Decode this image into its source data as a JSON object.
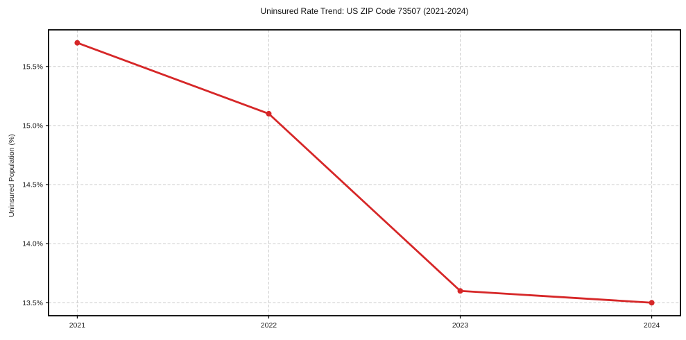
{
  "chart_data": {
    "type": "line",
    "title": "Uninsured Rate Trend: US ZIP Code 73507 (2021-2024)",
    "ylabel": "Uninsured Population (%)",
    "xlabel": "",
    "x": [
      2021,
      2022,
      2023,
      2024
    ],
    "values": [
      15.7,
      15.1,
      13.6,
      13.5
    ],
    "xlim": [
      2020.85,
      2024.15
    ],
    "ylim": [
      13.39,
      15.81
    ],
    "xticks": [
      {
        "value": 2021,
        "label": "2021"
      },
      {
        "value": 2022,
        "label": "2022"
      },
      {
        "value": 2023,
        "label": "2023"
      },
      {
        "value": 2024,
        "label": "2024"
      }
    ],
    "yticks": [
      {
        "value": 13.5,
        "label": "13.5%"
      },
      {
        "value": 14.0,
        "label": "14.0%"
      },
      {
        "value": 14.5,
        "label": "14.5%"
      },
      {
        "value": 15.0,
        "label": "15.0%"
      },
      {
        "value": 15.5,
        "label": "15.5%"
      }
    ],
    "line_color": "#d62728",
    "marker": "circle",
    "marker_radius": 4,
    "grid": true,
    "grid_style": "dashed",
    "legend_position": "none",
    "background_color": "#ffffff"
  }
}
